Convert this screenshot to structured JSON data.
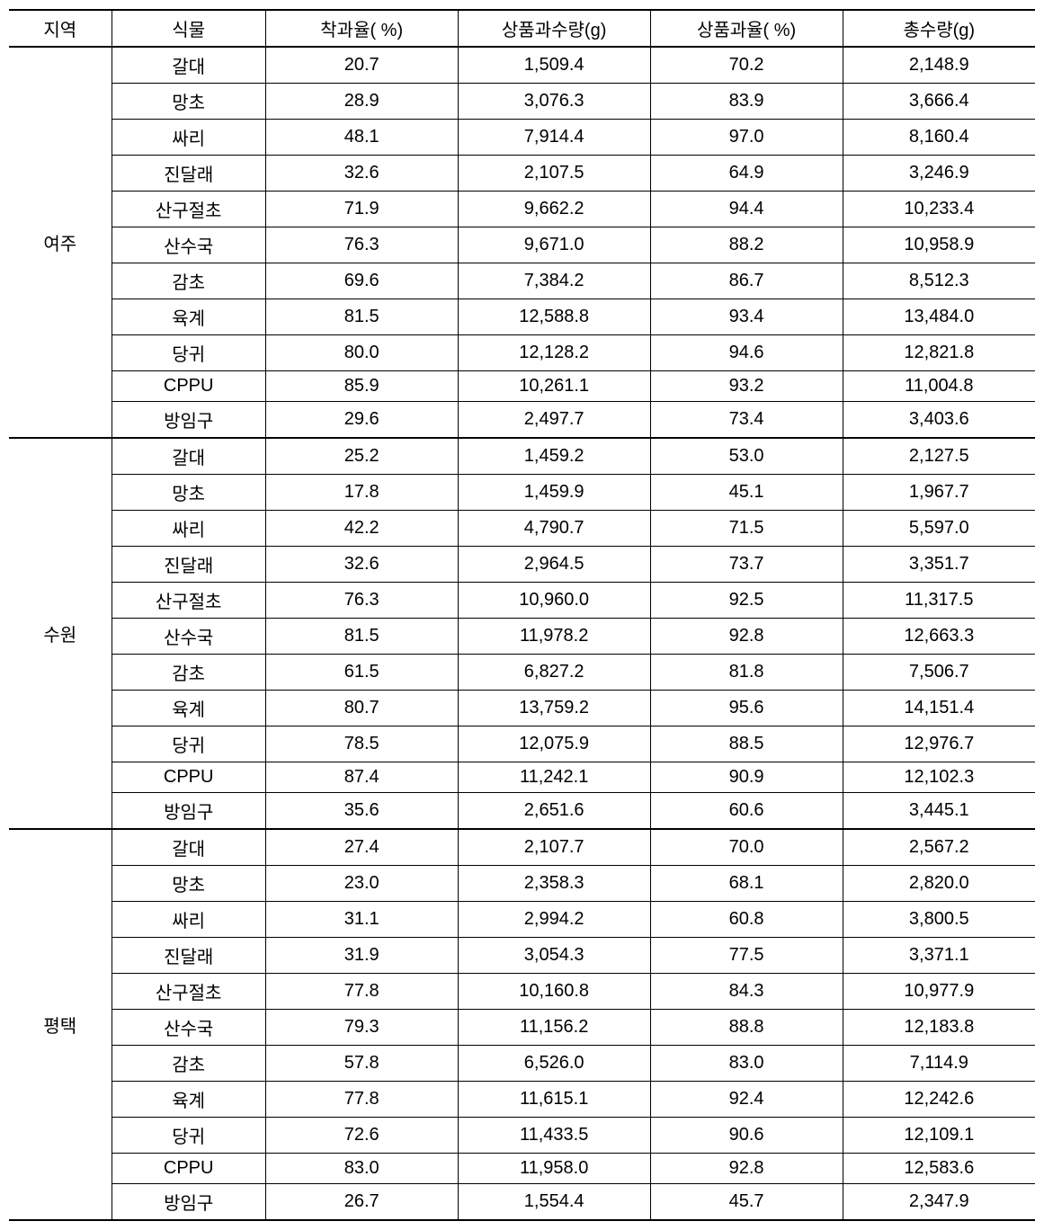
{
  "table": {
    "type": "table",
    "background_color": "#ffffff",
    "text_color": "#000000",
    "border_color": "#000000",
    "font_size_pt": 15,
    "columns": [
      {
        "key": "region",
        "label": "지역",
        "width_pct": 10,
        "align": "center"
      },
      {
        "key": "plant",
        "label": "식물",
        "width_pct": 15,
        "align": "center"
      },
      {
        "key": "rate",
        "label": "착과율( %)",
        "width_pct": 18.75,
        "align": "center"
      },
      {
        "key": "qty_g",
        "label": "상품과수량(g)",
        "width_pct": 18.75,
        "align": "center"
      },
      {
        "key": "prate",
        "label": "상품과율( %)",
        "width_pct": 18.75,
        "align": "center"
      },
      {
        "key": "total",
        "label": "총수량(g)",
        "width_pct": 18.75,
        "align": "center"
      }
    ],
    "regions": [
      {
        "name": "여주",
        "rows": [
          {
            "plant": "갈대",
            "rate": "20.7",
            "qty_g": "1,509.4",
            "prate": "70.2",
            "total": "2,148.9"
          },
          {
            "plant": "망초",
            "rate": "28.9",
            "qty_g": "3,076.3",
            "prate": "83.9",
            "total": "3,666.4"
          },
          {
            "plant": "싸리",
            "rate": "48.1",
            "qty_g": "7,914.4",
            "prate": "97.0",
            "total": "8,160.4"
          },
          {
            "plant": "진달래",
            "rate": "32.6",
            "qty_g": "2,107.5",
            "prate": "64.9",
            "total": "3,246.9"
          },
          {
            "plant": "산구절초",
            "rate": "71.9",
            "qty_g": "9,662.2",
            "prate": "94.4",
            "total": "10,233.4"
          },
          {
            "plant": "산수국",
            "rate": "76.3",
            "qty_g": "9,671.0",
            "prate": "88.2",
            "total": "10,958.9"
          },
          {
            "plant": "감초",
            "rate": "69.6",
            "qty_g": "7,384.2",
            "prate": "86.7",
            "total": "8,512.3"
          },
          {
            "plant": "육계",
            "rate": "81.5",
            "qty_g": "12,588.8",
            "prate": "93.4",
            "total": "13,484.0"
          },
          {
            "plant": "당귀",
            "rate": "80.0",
            "qty_g": "12,128.2",
            "prate": "94.6",
            "total": "12,821.8"
          },
          {
            "plant": "CPPU",
            "rate": "85.9",
            "qty_g": "10,261.1",
            "prate": "93.2",
            "total": "11,004.8"
          },
          {
            "plant": "방임구",
            "rate": "29.6",
            "qty_g": "2,497.7",
            "prate": "73.4",
            "total": "3,403.6"
          }
        ]
      },
      {
        "name": "수원",
        "rows": [
          {
            "plant": "갈대",
            "rate": "25.2",
            "qty_g": "1,459.2",
            "prate": "53.0",
            "total": "2,127.5"
          },
          {
            "plant": "망초",
            "rate": "17.8",
            "qty_g": "1,459.9",
            "prate": "45.1",
            "total": "1,967.7"
          },
          {
            "plant": "싸리",
            "rate": "42.2",
            "qty_g": "4,790.7",
            "prate": "71.5",
            "total": "5,597.0"
          },
          {
            "plant": "진달래",
            "rate": "32.6",
            "qty_g": "2,964.5",
            "prate": "73.7",
            "total": "3,351.7"
          },
          {
            "plant": "산구절초",
            "rate": "76.3",
            "qty_g": "10,960.0",
            "prate": "92.5",
            "total": "11,317.5"
          },
          {
            "plant": "산수국",
            "rate": "81.5",
            "qty_g": "11,978.2",
            "prate": "92.8",
            "total": "12,663.3"
          },
          {
            "plant": "감초",
            "rate": "61.5",
            "qty_g": "6,827.2",
            "prate": "81.8",
            "total": "7,506.7"
          },
          {
            "plant": "육계",
            "rate": "80.7",
            "qty_g": "13,759.2",
            "prate": "95.6",
            "total": "14,151.4"
          },
          {
            "plant": "당귀",
            "rate": "78.5",
            "qty_g": "12,075.9",
            "prate": "88.5",
            "total": "12,976.7"
          },
          {
            "plant": "CPPU",
            "rate": "87.4",
            "qty_g": "11,242.1",
            "prate": "90.9",
            "total": "12,102.3"
          },
          {
            "plant": "방임구",
            "rate": "35.6",
            "qty_g": "2,651.6",
            "prate": "60.6",
            "total": "3,445.1"
          }
        ]
      },
      {
        "name": "평택",
        "rows": [
          {
            "plant": "갈대",
            "rate": "27.4",
            "qty_g": "2,107.7",
            "prate": "70.0",
            "total": "2,567.2"
          },
          {
            "plant": "망초",
            "rate": "23.0",
            "qty_g": "2,358.3",
            "prate": "68.1",
            "total": "2,820.0"
          },
          {
            "plant": "싸리",
            "rate": "31.1",
            "qty_g": "2,994.2",
            "prate": "60.8",
            "total": "3,800.5"
          },
          {
            "plant": "진달래",
            "rate": "31.9",
            "qty_g": "3,054.3",
            "prate": "77.5",
            "total": "3,371.1"
          },
          {
            "plant": "산구절초",
            "rate": "77.8",
            "qty_g": "10,160.8",
            "prate": "84.3",
            "total": "10,977.9"
          },
          {
            "plant": "산수국",
            "rate": "79.3",
            "qty_g": "11,156.2",
            "prate": "88.8",
            "total": "12,183.8"
          },
          {
            "plant": "감초",
            "rate": "57.8",
            "qty_g": "6,526.0",
            "prate": "83.0",
            "total": "7,114.9"
          },
          {
            "plant": "육계",
            "rate": "77.8",
            "qty_g": "11,615.1",
            "prate": "92.4",
            "total": "12,242.6"
          },
          {
            "plant": "당귀",
            "rate": "72.6",
            "qty_g": "11,433.5",
            "prate": "90.6",
            "total": "12,109.1"
          },
          {
            "plant": "CPPU",
            "rate": "83.0",
            "qty_g": "11,958.0",
            "prate": "92.8",
            "total": "12,583.6"
          },
          {
            "plant": "방임구",
            "rate": "26.7",
            "qty_g": "1,554.4",
            "prate": "45.7",
            "total": "2,347.9"
          }
        ]
      }
    ]
  }
}
